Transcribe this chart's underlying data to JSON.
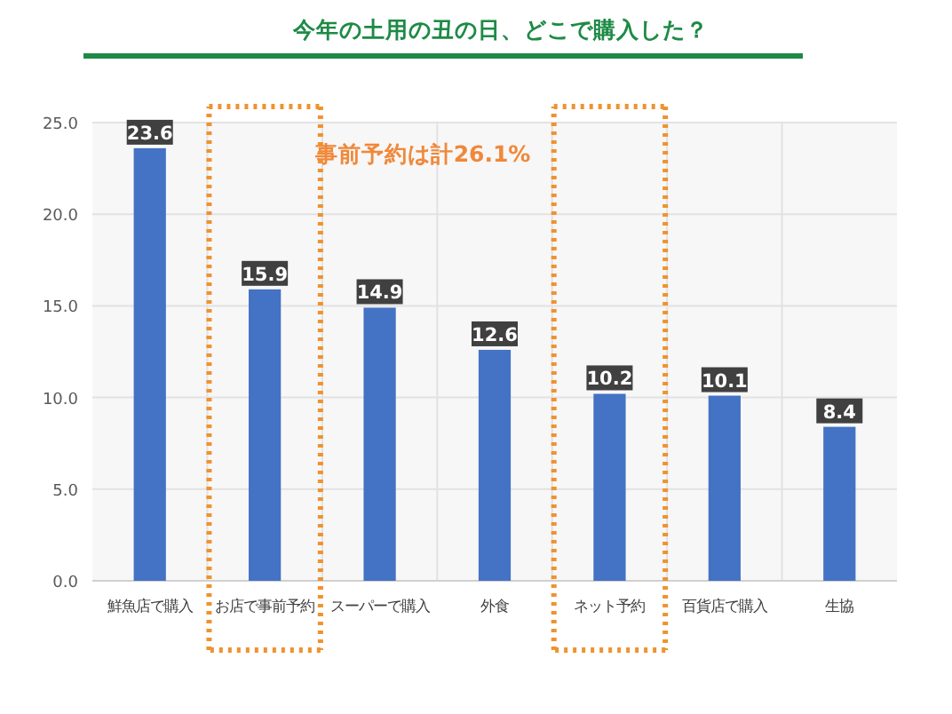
{
  "chart_data": {
    "type": "bar",
    "title": "今年の土用の丑の日、どこで購入した？",
    "categories": [
      "鮮魚店で購入",
      "お店で事前予約",
      "スーパーで購入",
      "外食",
      "ネット予約",
      "百貨店で購入",
      "生協"
    ],
    "values": [
      23.6,
      15.9,
      14.9,
      12.6,
      10.2,
      10.1,
      8.4
    ],
    "color": "#4472c4",
    "ylim": [
      0,
      25
    ],
    "yticks": [
      {
        "value": 0,
        "label": "0.0"
      },
      {
        "value": 5,
        "label": "5.0"
      },
      {
        "value": 10,
        "label": "10.0"
      },
      {
        "value": 15,
        "label": "15.0"
      },
      {
        "value": 20,
        "label": "20.0"
      },
      {
        "value": 25,
        "label": "25.0"
      }
    ],
    "grid": true,
    "data_labels": true,
    "annotations": [
      "事前予約は計26.1%"
    ]
  }
}
